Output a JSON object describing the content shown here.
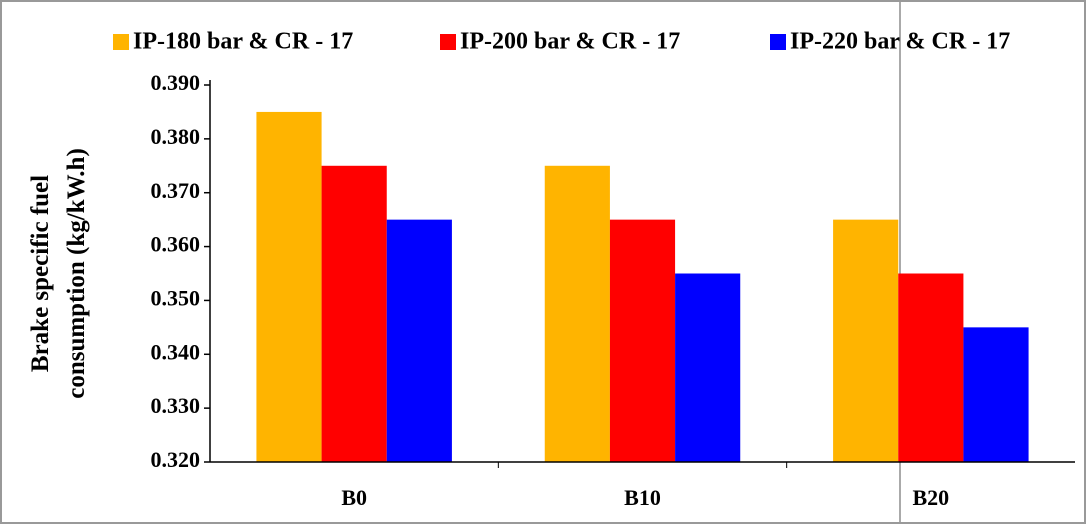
{
  "chart_data": {
    "type": "bar",
    "ylabel": [
      "Brake  specific  fuel",
      "consumption (kg/kW.h)"
    ],
    "categories": [
      "B0",
      "B10",
      "B20"
    ],
    "series": [
      {
        "name": "IP-180 bar & CR - 17",
        "color": "#ffb400",
        "values": [
          0.385,
          0.375,
          0.365
        ]
      },
      {
        "name": "IP-200 bar & CR - 17",
        "color": "#ff0000",
        "values": [
          0.375,
          0.365,
          0.355
        ]
      },
      {
        "name": "IP-220 bar & CR - 17",
        "color": "#0000ff",
        "values": [
          0.365,
          0.355,
          0.345
        ]
      }
    ],
    "ylim": [
      0.32,
      0.39
    ],
    "yticks": [
      {
        "value": 0.32,
        "label": "0.320"
      },
      {
        "value": 0.33,
        "label": "0.330"
      },
      {
        "value": 0.34,
        "label": "0.340"
      },
      {
        "value": 0.35,
        "label": "0.350"
      },
      {
        "value": 0.36,
        "label": "0.360"
      },
      {
        "value": 0.37,
        "label": "0.370"
      },
      {
        "value": 0.38,
        "label": "0.380"
      },
      {
        "value": 0.39,
        "label": "0.390"
      }
    ],
    "grid": false,
    "legend": "top"
  }
}
